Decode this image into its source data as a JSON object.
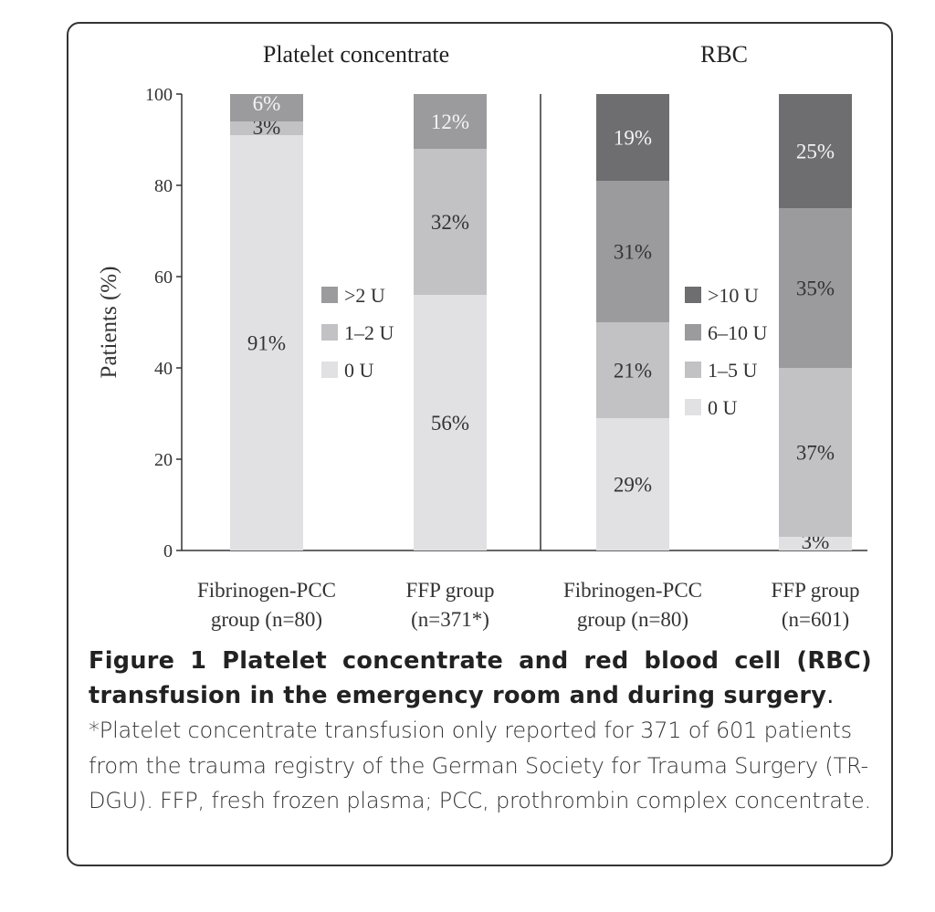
{
  "chart_data": {
    "type": "bar",
    "stacked": true,
    "ylabel": "Patients (%)",
    "ylim": [
      0,
      100
    ],
    "yticks": [
      0,
      20,
      40,
      60,
      80,
      100
    ],
    "panels": [
      {
        "title": "Platelet concentrate",
        "legend": [
          {
            "label": ">2 U",
            "color": "#9b9b9d"
          },
          {
            "label": "1–2 U",
            "color": "#c2c2c4"
          },
          {
            "label": "0 U",
            "color": "#e1e1e3"
          }
        ],
        "bars": [
          {
            "label_lines": [
              "Fibrinogen-PCC",
              "group (n=80)"
            ],
            "segments": [
              {
                "category": "0 U",
                "value": 91,
                "label": "91%",
                "color": "#e1e1e3"
              },
              {
                "category": "1–2 U",
                "value": 3,
                "label": "3%",
                "color": "#c2c2c4"
              },
              {
                "category": ">2 U",
                "value": 6,
                "label": "6%",
                "color": "#9b9b9d"
              }
            ]
          },
          {
            "label_lines": [
              "FFP group",
              "(n=371*)"
            ],
            "segments": [
              {
                "category": "0 U",
                "value": 56,
                "label": "56%",
                "color": "#e1e1e3"
              },
              {
                "category": "1–2 U",
                "value": 32,
                "label": "32%",
                "color": "#c2c2c4"
              },
              {
                "category": ">2 U",
                "value": 12,
                "label": "12%",
                "color": "#9b9b9d"
              }
            ]
          }
        ]
      },
      {
        "title": "RBC",
        "legend": [
          {
            "label": ">10 U",
            "color": "#6e6e70"
          },
          {
            "label": "6–10 U",
            "color": "#9b9b9d"
          },
          {
            "label": "1–5 U",
            "color": "#c2c2c4"
          },
          {
            "label": "0 U",
            "color": "#e1e1e3"
          }
        ],
        "bars": [
          {
            "label_lines": [
              "Fibrinogen-PCC",
              "group (n=80)"
            ],
            "segments": [
              {
                "category": "0 U",
                "value": 29,
                "label": "29%",
                "color": "#e1e1e3"
              },
              {
                "category": "1–5 U",
                "value": 21,
                "label": "21%",
                "color": "#c2c2c4"
              },
              {
                "category": "6–10 U",
                "value": 31,
                "label": "31%",
                "color": "#9b9b9d"
              },
              {
                "category": ">10 U",
                "value": 19,
                "label": "19%",
                "color": "#6e6e70"
              }
            ]
          },
          {
            "label_lines": [
              "FFP group",
              "(n=601)"
            ],
            "segments": [
              {
                "category": "0 U",
                "value": 3,
                "label": "3%",
                "color": "#e1e1e3"
              },
              {
                "category": "1–5 U",
                "value": 37,
                "label": "37%",
                "color": "#c2c2c4"
              },
              {
                "category": "6–10 U",
                "value": 35,
                "label": "35%",
                "color": "#9b9b9d"
              },
              {
                "category": ">10 U",
                "value": 25,
                "label": "25%",
                "color": "#6e6e70"
              }
            ]
          }
        ]
      }
    ]
  },
  "caption": {
    "figure_label": "Figure 1",
    "title": "Platelet concentrate and red blood cell (RBC) transfusion in the emergency room and during surgery",
    "title_end": ".",
    "body": "*Platelet concentrate transfusion only reported for 371 of 601 patients from the trauma registry of the German Society for Trauma Surgery (TR-DGU). FFP, fresh frozen plasma; PCC, prothrombin complex concentrate."
  }
}
